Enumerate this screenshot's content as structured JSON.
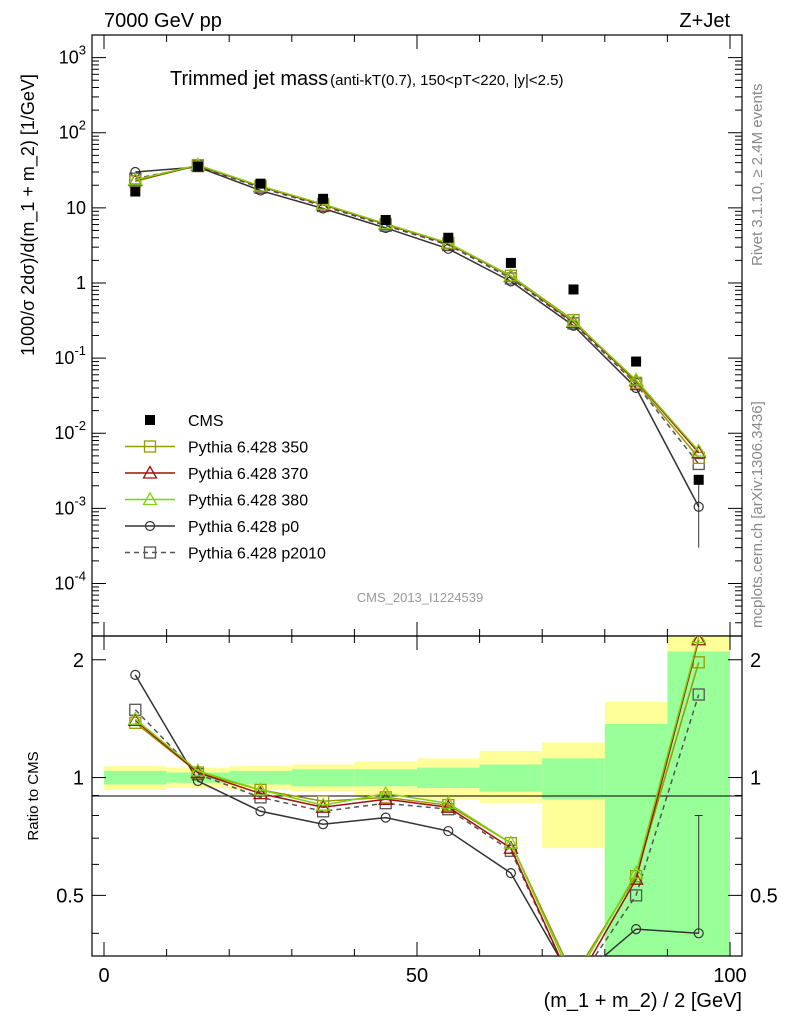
{
  "header": {
    "energy_label": "7000 GeV pp",
    "process_label": "Z+Jet"
  },
  "side_labels": {
    "rivet": "Rivet 3.1.10, ≥ 2.4M events",
    "mcplots": "mcplots.cern.ch [arXiv:1306.3436]"
  },
  "chart_data": [
    {
      "type": "line",
      "panel": "main",
      "title_main": "Trimmed jet mass",
      "title_sub": "(anti-kT(0.7), 150<pT<220, |y|<2.5)",
      "watermark": "CMS_2013_I1224539",
      "ylabel": "1000/σ 2dσ)/d(m_1 + m_2) [1/GeV]",
      "yscale": "log",
      "ylim": [
        2e-05,
        2000
      ],
      "xlim": [
        0,
        100
      ],
      "x": [
        5,
        15,
        25,
        35,
        45,
        55,
        65,
        75,
        85,
        95
      ],
      "y_tick_labels": [
        "10^-4",
        "10^-3",
        "10^-2",
        "10^-1",
        "1",
        "10",
        "10^2",
        "10^3"
      ],
      "legend_position": "lower-left",
      "series": [
        {
          "name": "CMS",
          "color": "#000000",
          "marker": "filled-square",
          "style": "points",
          "values": [
            16.5,
            35.5,
            21,
            13.2,
            6.9,
            4.0,
            1.85,
            0.82,
            0.09,
            0.0024
          ]
        },
        {
          "name": "Pythia 6.428 350",
          "color": "#999900",
          "marker": "open-square",
          "style": "solid",
          "values": [
            22.5,
            37,
            19.5,
            11.2,
            6.1,
            3.4,
            1.25,
            0.32,
            0.047,
            0.0047
          ]
        },
        {
          "name": "Pythia 6.428 370",
          "color": "#a01010",
          "marker": "open-triangle",
          "style": "solid",
          "values": [
            23.2,
            36.6,
            19.2,
            11.0,
            6.05,
            3.35,
            1.22,
            0.3,
            0.05,
            0.0055
          ]
        },
        {
          "name": "Pythia 6.428 380",
          "color": "#80d010",
          "marker": "open-triangle",
          "style": "solid",
          "values": [
            23.6,
            37.2,
            19.5,
            11.2,
            6.15,
            3.4,
            1.24,
            0.31,
            0.051,
            0.0058
          ]
        },
        {
          "name": "Pythia 6.428 p0",
          "color": "#333333",
          "marker": "open-circle",
          "style": "solid",
          "values": [
            30,
            35,
            17,
            9.8,
            5.4,
            2.85,
            1.05,
            0.27,
            0.04,
            0.00105
          ],
          "last_point_error": [
            0.0003,
            0.0021
          ]
        },
        {
          "name": "Pythia 6.428 p2010",
          "color": "#555555",
          "marker": "open-square",
          "style": "dashed",
          "values": [
            24.5,
            36,
            18.5,
            10.6,
            5.8,
            3.2,
            1.15,
            0.29,
            0.045,
            0.0039
          ]
        }
      ]
    },
    {
      "type": "line",
      "panel": "ratio",
      "ylabel": "Ratio to CMS",
      "xlabel": "(m_1 + m_2) / 2 [GeV]",
      "ylim": [
        0.35,
        2.3
      ],
      "xlim": [
        0,
        100
      ],
      "x_tick_labels": [
        "0",
        "50",
        "100"
      ],
      "y_tick_labels": [
        "0.5",
        "1",
        "2"
      ],
      "bands": {
        "x_edges": [
          0,
          10,
          20,
          30,
          40,
          50,
          60,
          70,
          80,
          90,
          100
        ],
        "yellow_lo": [
          0.93,
          0.94,
          0.93,
          0.92,
          0.9,
          0.88,
          0.86,
          0.66,
          0.35,
          0.35
        ],
        "yellow_hi": [
          1.07,
          1.06,
          1.07,
          1.08,
          1.1,
          1.12,
          1.17,
          1.23,
          1.56,
          2.3
        ],
        "green_lo": [
          0.96,
          0.97,
          0.96,
          0.95,
          0.95,
          0.94,
          0.92,
          0.88,
          0.35,
          0.35
        ],
        "green_hi": [
          1.04,
          1.03,
          1.04,
          1.05,
          1.05,
          1.06,
          1.08,
          1.12,
          1.37,
          2.1
        ],
        "colors": {
          "yellow": "#ffff99",
          "green": "#99ff99"
        }
      },
      "x": [
        5,
        15,
        25,
        35,
        45,
        55,
        65,
        75,
        85,
        95
      ],
      "series": [
        {
          "name": "Pythia 6.428 350",
          "color": "#999900",
          "marker": "open-square",
          "style": "solid",
          "values": [
            1.38,
            1.03,
            0.93,
            0.87,
            0.89,
            0.85,
            0.68,
            0.31,
            0.56,
            1.97
          ]
        },
        {
          "name": "Pythia 6.428 370",
          "color": "#a01010",
          "marker": "open-triangle",
          "style": "solid",
          "values": [
            1.4,
            1.03,
            0.91,
            0.84,
            0.88,
            0.84,
            0.66,
            0.29,
            0.55,
            2.25
          ]
        },
        {
          "name": "Pythia 6.428 380",
          "color": "#80d010",
          "marker": "open-triangle",
          "style": "solid",
          "values": [
            1.41,
            1.04,
            0.93,
            0.85,
            0.91,
            0.86,
            0.68,
            0.3,
            0.57,
            2.28
          ]
        },
        {
          "name": "Pythia 6.428 p0",
          "color": "#333333",
          "marker": "open-circle",
          "style": "solid",
          "values": [
            1.83,
            0.98,
            0.82,
            0.76,
            0.79,
            0.73,
            0.57,
            0.3,
            0.41,
            0.4
          ]
        },
        {
          "name": "Pythia 6.428 p2010",
          "color": "#555555",
          "marker": "open-square",
          "style": "dashed",
          "values": [
            1.49,
            1.02,
            0.89,
            0.82,
            0.86,
            0.83,
            0.65,
            0.29,
            0.5,
            1.63
          ]
        }
      ]
    }
  ]
}
